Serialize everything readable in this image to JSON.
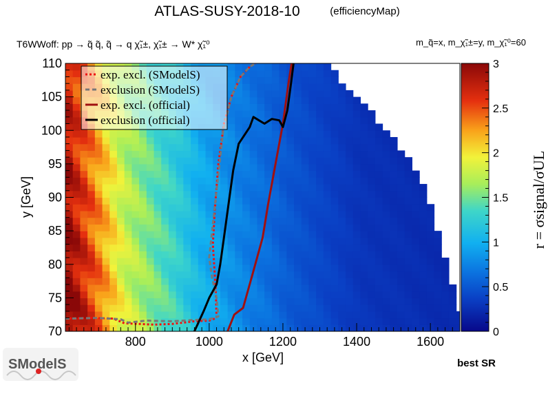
{
  "header": {
    "title": "ATLAS-SUSY-2018-10",
    "subtitle": "(efficiencyMap)",
    "process": "T6WWoff: pp  → q̃ q̃, q̃  → q χ̃₁±, χ̃₁± → W* χ̃₁⁰",
    "mass_note": "m_q̃=x, m_χ̃₁±=y, m_χ̃₁⁰=60"
  },
  "footer": {
    "best_sr": "best SR",
    "logo_text": "SModelS"
  },
  "chart_data": {
    "type": "heatmap",
    "title": "ATLAS-SUSY-2018-10",
    "xlabel": "x [GeV]",
    "ylabel": "y [GeV]",
    "zlabel": "r = σsignal/σUL",
    "xlim": [
      610,
      1680
    ],
    "ylim": [
      70,
      110
    ],
    "zlim": [
      0,
      3
    ],
    "xticks": [
      800,
      1000,
      1200,
      1400,
      1600
    ],
    "yticks": [
      70,
      75,
      80,
      85,
      90,
      95,
      100,
      105,
      110
    ],
    "zticks": [
      0,
      0.5,
      1,
      1.5,
      2,
      2.5,
      3
    ],
    "xtick_labels": [
      "800",
      "1000",
      "1200",
      "1400",
      "1600"
    ],
    "ytick_labels": [
      "70",
      "75",
      "80",
      "85",
      "90",
      "95",
      "100",
      "105",
      "110"
    ],
    "ztick_labels": [
      "0",
      "0.5",
      "1",
      "1.5",
      "2",
      "2.5",
      "3"
    ],
    "colormap": "rainbow (dark blue → cyan → yellow → red)",
    "grid": false,
    "legend_position": "top-left",
    "grid_spec": {
      "x_start": 610,
      "x_step": 20,
      "nx": 54,
      "y_start": 70,
      "y_step": 1,
      "ny": 40
    },
    "r_model": {
      "anchor_x": [
        610,
        680,
        760,
        840,
        900,
        960,
        1020,
        1080,
        1140,
        1200,
        1300,
        1400,
        1680
      ],
      "anchor_r": [
        2.85,
        2.35,
        1.75,
        1.45,
        1.25,
        1.0,
        0.85,
        0.72,
        0.62,
        0.5,
        0.38,
        0.28,
        0.2
      ],
      "low_y_boost": 0.25,
      "upper_edge_x_at_y": [
        [
          1320,
          110
        ],
        [
          1350,
          106
        ],
        [
          1420,
          103
        ],
        [
          1520,
          96
        ],
        [
          1580,
          90
        ],
        [
          1610,
          84
        ],
        [
          1640,
          78
        ],
        [
          1680,
          71
        ]
      ]
    },
    "series": [
      {
        "name": "exp. excl. (SModelS)",
        "style": "red-dotted",
        "color": "#ee1111",
        "points": [
          [
            610,
            71.9
          ],
          [
            680,
            72.0
          ],
          [
            740,
            71.9
          ],
          [
            770,
            71.2
          ],
          [
            850,
            71.0
          ],
          [
            900,
            71.1
          ],
          [
            960,
            71.5
          ],
          [
            1000,
            71.6
          ],
          [
            1020,
            72.0
          ],
          [
            1018,
            76.0
          ],
          [
            1010,
            83.0
          ],
          [
            1015,
            88.0
          ],
          [
            1025,
            95.0
          ],
          [
            1040,
            101.0
          ],
          [
            1060,
            105.0
          ],
          [
            1085,
            108.0
          ],
          [
            1110,
            109.5
          ],
          [
            1125,
            110.0
          ]
        ]
      },
      {
        "name": "exclusion (SModelS)",
        "style": "grey-dashed",
        "color": "#777777",
        "points": [
          [
            610,
            71.9
          ],
          [
            700,
            72.0
          ],
          [
            760,
            71.8
          ],
          [
            780,
            71.3
          ],
          [
            830,
            71.6
          ],
          [
            900,
            71.5
          ],
          [
            960,
            71.7
          ],
          [
            1000,
            71.8
          ],
          [
            1025,
            72.2
          ],
          [
            1020,
            75.0
          ],
          [
            1008,
            78.0
          ],
          [
            1000,
            81.0
          ],
          [
            1010,
            86.0
          ],
          [
            1022,
            92.0
          ],
          [
            1038,
            100.0
          ],
          [
            1060,
            105.0
          ],
          [
            1085,
            108.0
          ],
          [
            1110,
            109.5
          ],
          [
            1125,
            110.0
          ]
        ]
      },
      {
        "name": "exp. excl. (official)",
        "style": "darkred-solid",
        "color": "#a01010",
        "points": [
          [
            1050,
            70.0
          ],
          [
            1068,
            72.5
          ],
          [
            1092,
            73.5
          ],
          [
            1120,
            79.0
          ],
          [
            1145,
            84.0
          ],
          [
            1160,
            89.0
          ],
          [
            1180,
            95.0
          ],
          [
            1200,
            101.0
          ],
          [
            1215,
            107.0
          ],
          [
            1225,
            110.5
          ]
        ]
      },
      {
        "name": "exclusion (official)",
        "style": "black-solid",
        "color": "#000000",
        "points": [
          [
            960,
            70.0
          ],
          [
            985,
            73.0
          ],
          [
            1000,
            75.0
          ],
          [
            1020,
            77.0
          ],
          [
            1030,
            80.0
          ],
          [
            1040,
            84.0
          ],
          [
            1055,
            90.0
          ],
          [
            1065,
            94.0
          ],
          [
            1080,
            98.0
          ],
          [
            1110,
            100.5
          ],
          [
            1120,
            102.0
          ],
          [
            1135,
            101.5
          ],
          [
            1150,
            101.0
          ],
          [
            1170,
            101.7
          ],
          [
            1190,
            101.5
          ],
          [
            1200,
            100.5
          ],
          [
            1212,
            103.0
          ],
          [
            1222,
            107.0
          ],
          [
            1230,
            110.5
          ]
        ]
      }
    ]
  }
}
